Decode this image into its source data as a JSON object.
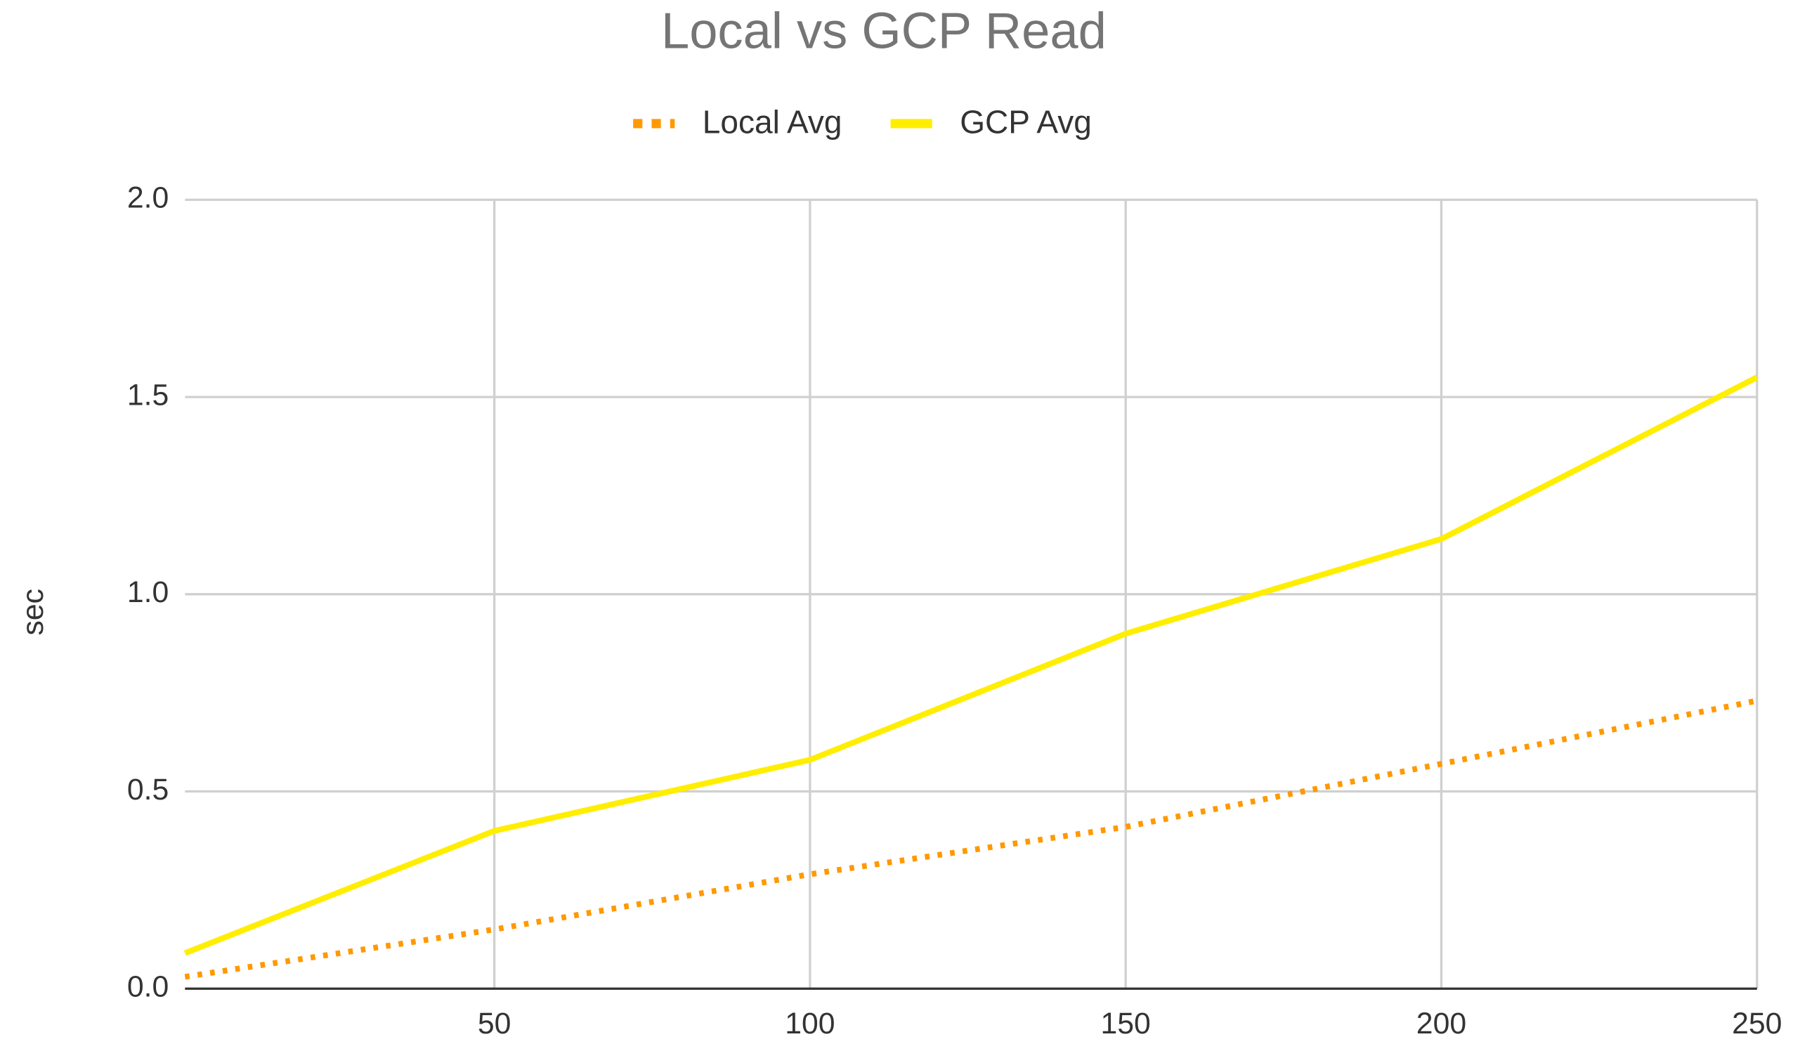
{
  "chart_data": {
    "type": "line",
    "title": "Local vs GCP Read",
    "y_label": "sec",
    "x": [
      1,
      50,
      100,
      150,
      200,
      250
    ],
    "series": [
      {
        "name": "Local Avg",
        "color": "#ff9900",
        "style": "dotted",
        "values": [
          0.03,
          0.15,
          0.29,
          0.41,
          0.57,
          0.73
        ]
      },
      {
        "name": "GCP Avg",
        "color": "#ffee00",
        "style": "solid",
        "values": [
          0.09,
          0.4,
          0.58,
          0.9,
          1.14,
          1.55
        ]
      }
    ],
    "xlim": [
      1,
      250
    ],
    "xticks": [
      50,
      100,
      150,
      200,
      250
    ],
    "ylim": [
      0,
      2
    ],
    "yticks": [
      {
        "value": 0,
        "label": "0.0"
      },
      {
        "value": 0.5,
        "label": "0.5"
      },
      {
        "value": 1,
        "label": "1.0"
      },
      {
        "value": 1.5,
        "label": "1.5"
      },
      {
        "value": 2,
        "label": "2.0"
      }
    ],
    "grid": true,
    "legend": "top"
  }
}
